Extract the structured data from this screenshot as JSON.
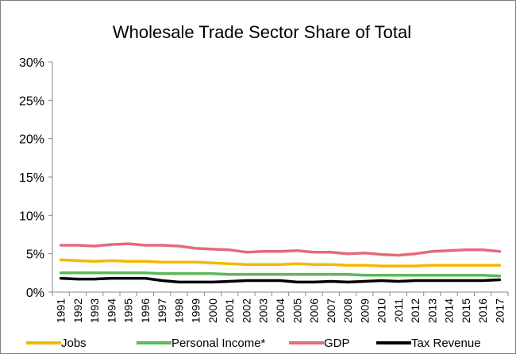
{
  "chart_data": {
    "type": "line",
    "title": "Wholesale Trade Sector Share of Total",
    "xlabel": "",
    "ylabel": "",
    "ylim": [
      0,
      30
    ],
    "yticks": [
      "0%",
      "5%",
      "10%",
      "15%",
      "20%",
      "25%",
      "30%"
    ],
    "grid": false,
    "legend_position": "bottom",
    "x": [
      "1991",
      "1992",
      "1993",
      "1994",
      "1995",
      "1996",
      "1997",
      "1998",
      "1999",
      "2000",
      "2001",
      "2002",
      "2003",
      "2004",
      "2005",
      "2006",
      "2007",
      "2008",
      "2009",
      "2010",
      "2011",
      "2012",
      "2013",
      "2014",
      "2015",
      "2016",
      "2017"
    ],
    "series": [
      {
        "name": "Jobs",
        "color": "#f5b800",
        "values": [
          4.2,
          4.1,
          4.0,
          4.1,
          4.0,
          4.0,
          3.9,
          3.9,
          3.9,
          3.8,
          3.7,
          3.6,
          3.6,
          3.6,
          3.7,
          3.6,
          3.6,
          3.5,
          3.5,
          3.4,
          3.4,
          3.4,
          3.5,
          3.5,
          3.5,
          3.5,
          3.5
        ]
      },
      {
        "name": "Personal Income*",
        "color": "#5cb85c",
        "values": [
          2.5,
          2.5,
          2.5,
          2.5,
          2.5,
          2.5,
          2.4,
          2.4,
          2.4,
          2.4,
          2.3,
          2.3,
          2.3,
          2.3,
          2.3,
          2.3,
          2.3,
          2.3,
          2.2,
          2.2,
          2.2,
          2.2,
          2.2,
          2.2,
          2.2,
          2.2,
          2.1
        ]
      },
      {
        "name": "GDP",
        "color": "#e46a7e",
        "values": [
          6.1,
          6.1,
          6.0,
          6.2,
          6.3,
          6.1,
          6.1,
          6.0,
          5.7,
          5.6,
          5.5,
          5.2,
          5.3,
          5.3,
          5.4,
          5.2,
          5.2,
          5.0,
          5.1,
          4.9,
          4.8,
          5.0,
          5.3,
          5.4,
          5.5,
          5.5,
          5.3
        ]
      },
      {
        "name": "Tax Revenue",
        "color": "#000000",
        "values": [
          1.8,
          1.7,
          1.7,
          1.8,
          1.8,
          1.8,
          1.5,
          1.3,
          1.3,
          1.3,
          1.4,
          1.5,
          1.5,
          1.5,
          1.3,
          1.3,
          1.4,
          1.3,
          1.4,
          1.5,
          1.4,
          1.5,
          1.5,
          1.5,
          1.5,
          1.5,
          1.6
        ]
      }
    ]
  }
}
